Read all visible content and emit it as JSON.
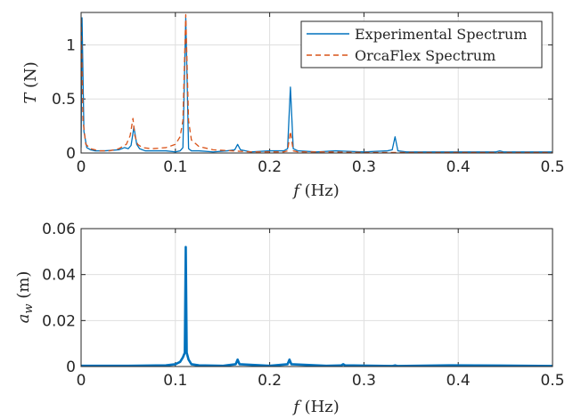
{
  "chart_data": [
    {
      "type": "line",
      "xlabel": "f (Hz)",
      "ylabel": "T (N)",
      "xlim": [
        0,
        0.5
      ],
      "ylim": [
        0,
        1.3
      ],
      "xticks": [
        "0",
        "0.1",
        "0.2",
        "0.3",
        "0.4",
        "0.5"
      ],
      "yticks": [
        "0",
        "0.5",
        "1"
      ],
      "grid": true,
      "legend": "top-right",
      "series": [
        {
          "name": "Experimental Spectrum",
          "color": "#0072bd",
          "style": "solid",
          "x": [
            0,
            0.001,
            0.003,
            0.006,
            0.01,
            0.015,
            0.025,
            0.04,
            0.046,
            0.05,
            0.053,
            0.056,
            0.059,
            0.062,
            0.068,
            0.08,
            0.09,
            0.1,
            0.105,
            0.108,
            0.111,
            0.114,
            0.117,
            0.125,
            0.14,
            0.155,
            0.163,
            0.166,
            0.169,
            0.18,
            0.2,
            0.215,
            0.219,
            0.222,
            0.225,
            0.23,
            0.25,
            0.27,
            0.3,
            0.325,
            0.33,
            0.333,
            0.336,
            0.345,
            0.38,
            0.42,
            0.44,
            0.444,
            0.448,
            0.47,
            0.5
          ],
          "y": [
            0.05,
            1.25,
            0.2,
            0.05,
            0.03,
            0.02,
            0.02,
            0.03,
            0.05,
            0.04,
            0.07,
            0.24,
            0.08,
            0.04,
            0.02,
            0.02,
            0.02,
            0.01,
            0.02,
            0.05,
            1.25,
            0.04,
            0.02,
            0.02,
            0.01,
            0.02,
            0.03,
            0.08,
            0.03,
            0.01,
            0.02,
            0.02,
            0.04,
            0.61,
            0.04,
            0.02,
            0.01,
            0.02,
            0.01,
            0.02,
            0.03,
            0.15,
            0.02,
            0.01,
            0.01,
            0.01,
            0.01,
            0.02,
            0.01,
            0.01,
            0.01
          ]
        },
        {
          "name": "OrcaFlex Spectrum",
          "color": "#d95319",
          "style": "dashed",
          "x": [
            0,
            0.002,
            0.005,
            0.01,
            0.02,
            0.03,
            0.04,
            0.048,
            0.052,
            0.055,
            0.057,
            0.06,
            0.065,
            0.075,
            0.09,
            0.1,
            0.105,
            0.108,
            0.111,
            0.114,
            0.117,
            0.125,
            0.14,
            0.16,
            0.18,
            0.2,
            0.215,
            0.219,
            0.222,
            0.225,
            0.23,
            0.26,
            0.3,
            0.35,
            0.4,
            0.45,
            0.5
          ],
          "y": [
            1.25,
            0.3,
            0.08,
            0.04,
            0.02,
            0.02,
            0.04,
            0.08,
            0.16,
            0.32,
            0.16,
            0.08,
            0.05,
            0.04,
            0.05,
            0.08,
            0.15,
            0.3,
            1.28,
            0.3,
            0.12,
            0.06,
            0.03,
            0.02,
            0.01,
            0.01,
            0.01,
            0.02,
            0.2,
            0.02,
            0.01,
            0.01,
            0.005,
            0.005,
            0.005,
            0.005,
            0.005
          ]
        }
      ]
    },
    {
      "type": "line",
      "xlabel": "f (Hz)",
      "ylabel": "a_w (m)",
      "xlim": [
        0,
        0.5
      ],
      "ylim": [
        0,
        0.06
      ],
      "xticks": [
        "0",
        "0.1",
        "0.2",
        "0.3",
        "0.4",
        "0.5"
      ],
      "yticks": [
        "0",
        "0.02",
        "0.04",
        "0.06"
      ],
      "grid": true,
      "series": [
        {
          "color": "#0072bd",
          "style": "solid",
          "x": [
            0,
            0.05,
            0.09,
            0.1,
            0.105,
            0.108,
            0.11,
            0.111,
            0.112,
            0.114,
            0.117,
            0.125,
            0.15,
            0.164,
            0.166,
            0.168,
            0.2,
            0.219,
            0.221,
            0.223,
            0.26,
            0.276,
            0.278,
            0.28,
            0.33,
            0.333,
            0.336,
            0.39,
            0.444,
            0.5
          ],
          "y": [
            0.0003,
            0.0003,
            0.0005,
            0.001,
            0.002,
            0.004,
            0.006,
            0.052,
            0.006,
            0.003,
            0.001,
            0.0005,
            0.0003,
            0.001,
            0.003,
            0.001,
            0.0003,
            0.001,
            0.003,
            0.001,
            0.0003,
            0.0005,
            0.001,
            0.0005,
            0.0002,
            0.0005,
            0.0002,
            0.0005,
            0.0004,
            0.0002
          ]
        }
      ]
    }
  ]
}
